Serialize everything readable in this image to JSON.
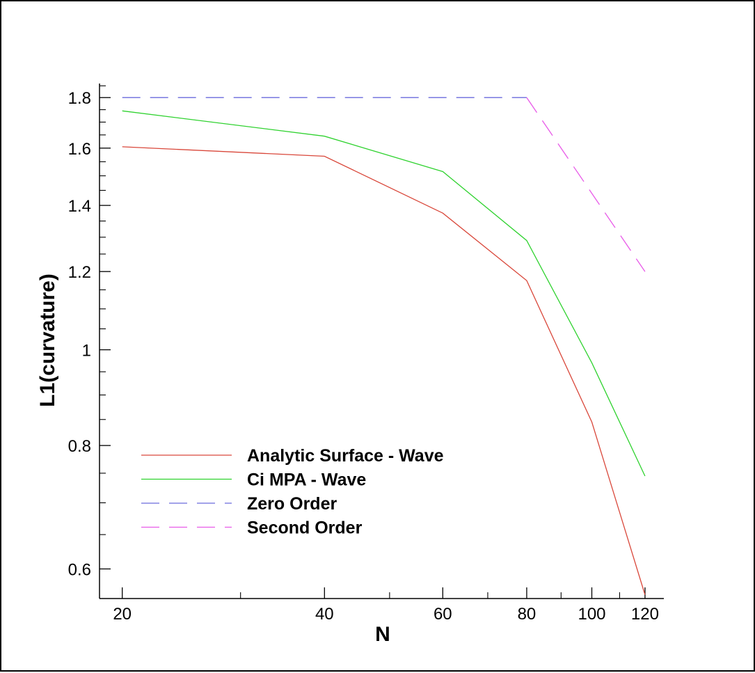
{
  "chart_data": {
    "type": "line",
    "xlabel": "N",
    "ylabel": "L1(curvature)",
    "x_scale": "log",
    "y_scale": "log",
    "xlim": [
      18.5,
      128
    ],
    "ylim": [
      0.56,
      1.86
    ],
    "x_ticks": [
      20,
      40,
      60,
      80,
      100,
      120
    ],
    "x_tick_labels": [
      "20",
      "40",
      "60",
      "80",
      "100",
      "120"
    ],
    "x_minor_ticks": [
      30,
      50,
      70,
      90,
      110
    ],
    "y_ticks": [
      0.6,
      0.8,
      1.0,
      1.2,
      1.4,
      1.6,
      1.8
    ],
    "y_tick_labels": [
      "0.6",
      "0.8",
      "1",
      "1.2",
      "1.4",
      "1.6",
      "1.8"
    ],
    "y_minor_ticks": [
      0.65,
      0.7,
      0.75,
      0.85,
      0.9,
      0.95,
      1.05,
      1.1,
      1.15,
      1.25,
      1.3,
      1.35,
      1.45,
      1.5,
      1.55,
      1.65,
      1.7,
      1.75,
      1.85
    ],
    "grid": false,
    "legend_position": "bottom-left",
    "series": [
      {
        "name": "Analytic Surface - Wave",
        "color": "#d9473a",
        "dash": "solid",
        "points": [
          [
            20,
            1.605
          ],
          [
            40,
            1.57
          ],
          [
            60,
            1.375
          ],
          [
            80,
            1.175
          ],
          [
            100,
            0.845
          ],
          [
            120,
            0.565
          ]
        ]
      },
      {
        "name": "Ci MPA - Wave",
        "color": "#2fd22f",
        "dash": "solid",
        "points": [
          [
            20,
            1.745
          ],
          [
            40,
            1.645
          ],
          [
            60,
            1.515
          ],
          [
            80,
            1.29
          ],
          [
            100,
            0.97
          ],
          [
            120,
            0.745
          ]
        ]
      },
      {
        "name": "Zero Order",
        "color": "#6a6adc",
        "dash": "dashed",
        "points": [
          [
            20,
            1.8
          ],
          [
            80,
            1.8
          ]
        ]
      },
      {
        "name": "Second Order",
        "color": "#e85ae8",
        "dash": "dashed",
        "points": [
          [
            80,
            1.8
          ],
          [
            120,
            1.2
          ]
        ]
      }
    ]
  }
}
